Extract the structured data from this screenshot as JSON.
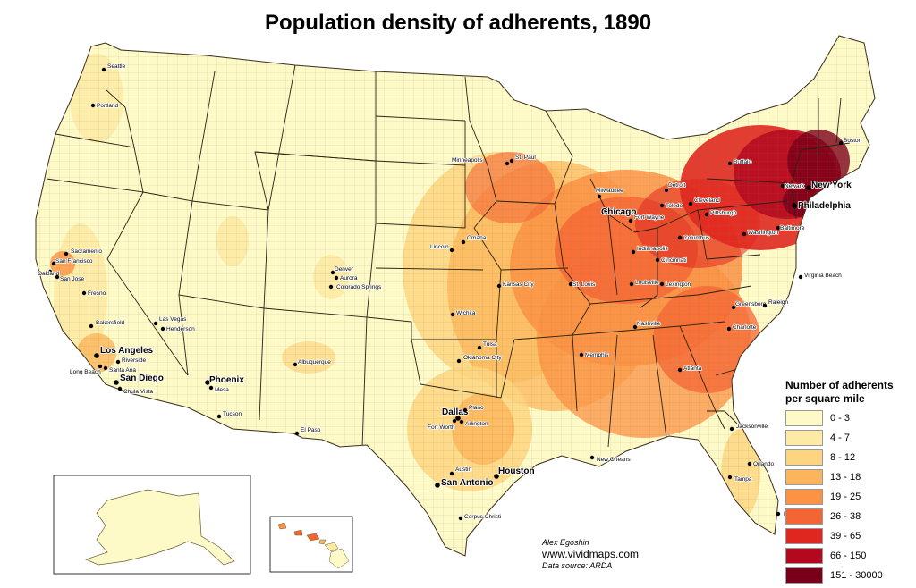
{
  "title": "Population density of adherents, 1890",
  "legend": {
    "title_line1": "Number of adherents",
    "title_line2": "per square mile",
    "classes": [
      {
        "label": "0 - 3",
        "color": "#fdfac8"
      },
      {
        "label": "4 - 7",
        "color": "#fdeaa4"
      },
      {
        "label": "8 - 12",
        "color": "#fdd580"
      },
      {
        "label": "13 - 18",
        "color": "#fcb55a"
      },
      {
        "label": "19 - 25",
        "color": "#fb9244"
      },
      {
        "label": "26 - 38",
        "color": "#f56534"
      },
      {
        "label": "39 - 65",
        "color": "#e0271f"
      },
      {
        "label": "66 - 150",
        "color": "#b4081f"
      },
      {
        "label": "151 - 30000",
        "color": "#7a0019"
      }
    ]
  },
  "credits": {
    "author": "Alex Egoshin",
    "site": "www.vividmaps.com",
    "source": "Data source: ARDA"
  },
  "cities": [
    {
      "name": "Seattle",
      "big": false
    },
    {
      "name": "Portland",
      "big": false
    },
    {
      "name": "Sacramento",
      "big": false
    },
    {
      "name": "San Francisco",
      "big": false
    },
    {
      "name": "Oakland",
      "big": false
    },
    {
      "name": "San Jose",
      "big": false
    },
    {
      "name": "Fresno",
      "big": false
    },
    {
      "name": "Bakersfield",
      "big": false
    },
    {
      "name": "Las Vegas",
      "big": false
    },
    {
      "name": "Henderson",
      "big": false
    },
    {
      "name": "Los Angeles",
      "big": true
    },
    {
      "name": "Riverside",
      "big": false
    },
    {
      "name": "Santa Ana",
      "big": false
    },
    {
      "name": "Long Beach",
      "big": false
    },
    {
      "name": "San Diego",
      "big": true
    },
    {
      "name": "Chula Vista",
      "big": false
    },
    {
      "name": "Phoenix",
      "big": true
    },
    {
      "name": "Mesa",
      "big": false
    },
    {
      "name": "Tucson",
      "big": false
    },
    {
      "name": "Denver",
      "big": false
    },
    {
      "name": "Aurora",
      "big": false
    },
    {
      "name": "Colorado Springs",
      "big": false
    },
    {
      "name": "Albuquerque",
      "big": false
    },
    {
      "name": "El Paso",
      "big": false
    },
    {
      "name": "Minneapolis",
      "big": false
    },
    {
      "name": "St. Paul",
      "big": false
    },
    {
      "name": "Omaha",
      "big": false
    },
    {
      "name": "Lincoln",
      "big": false
    },
    {
      "name": "Kansas City",
      "big": false
    },
    {
      "name": "Wichita",
      "big": false
    },
    {
      "name": "Tulsa",
      "big": false
    },
    {
      "name": "Oklahoma City",
      "big": false
    },
    {
      "name": "Dallas",
      "big": true
    },
    {
      "name": "Plano",
      "big": false
    },
    {
      "name": "Fort Worth",
      "big": false
    },
    {
      "name": "Arlington",
      "big": false
    },
    {
      "name": "Austin",
      "big": false
    },
    {
      "name": "San Antonio",
      "big": true
    },
    {
      "name": "Houston",
      "big": true
    },
    {
      "name": "Corpus Christi",
      "big": false
    },
    {
      "name": "Milwaukee",
      "big": false
    },
    {
      "name": "Chicago",
      "big": true
    },
    {
      "name": "Detroit",
      "big": false
    },
    {
      "name": "Toledo",
      "big": false
    },
    {
      "name": "Cleveland",
      "big": false
    },
    {
      "name": "Fort Wayne",
      "big": false
    },
    {
      "name": "Indianapolis",
      "big": false
    },
    {
      "name": "Columbus",
      "big": false
    },
    {
      "name": "Cincinnati",
      "big": false
    },
    {
      "name": "St. Louis",
      "big": false
    },
    {
      "name": "Louisville",
      "big": false
    },
    {
      "name": "Lexington",
      "big": false
    },
    {
      "name": "Nashville",
      "big": false
    },
    {
      "name": "Memphis",
      "big": false
    },
    {
      "name": "Atlanta",
      "big": false
    },
    {
      "name": "New Orleans",
      "big": false
    },
    {
      "name": "Jacksonville",
      "big": false
    },
    {
      "name": "Orlando",
      "big": false
    },
    {
      "name": "Tampa",
      "big": false
    },
    {
      "name": "Miami",
      "big": false
    },
    {
      "name": "Charlotte",
      "big": false
    },
    {
      "name": "Greensboro",
      "big": false
    },
    {
      "name": "Raleigh",
      "big": false
    },
    {
      "name": "Virginia Beach",
      "big": false
    },
    {
      "name": "Washington",
      "big": false
    },
    {
      "name": "Baltimore",
      "big": false
    },
    {
      "name": "Philadelphia",
      "big": true
    },
    {
      "name": "Pittsburgh",
      "big": false
    },
    {
      "name": "Buffalo",
      "big": false
    },
    {
      "name": "Newark",
      "big": false
    },
    {
      "name": "New York",
      "big": true
    },
    {
      "name": "Boston",
      "big": false
    }
  ]
}
